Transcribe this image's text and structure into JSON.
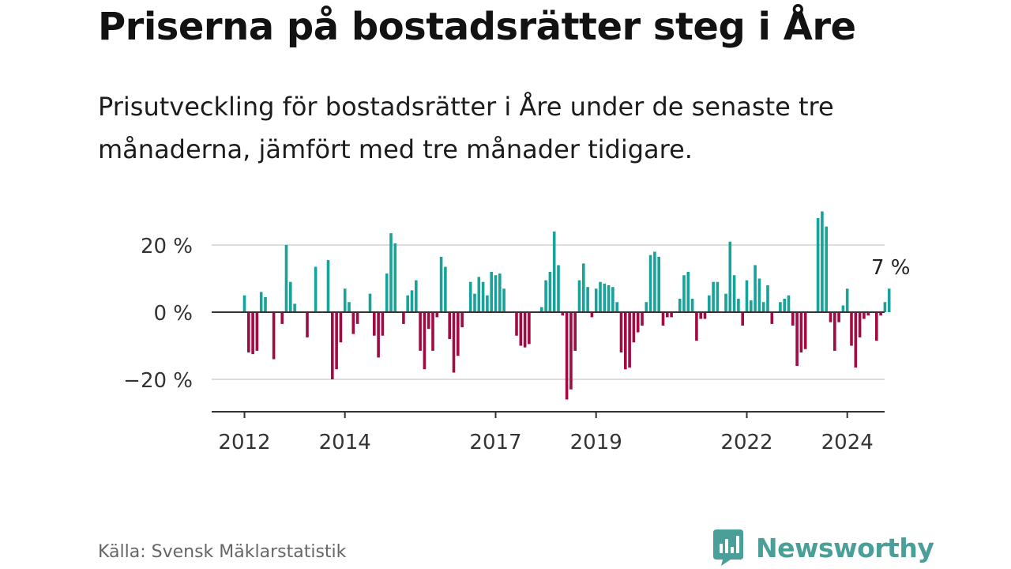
{
  "title": "Priserna på bostadsrätter steg i Åre",
  "subtitle": "Prisutveckling för bostadsrätter i Åre under de senaste tre månaderna, jämfört med tre månader tidigare.",
  "source": "Källa: Svensk Mäklarstatistik",
  "brand": "Newsworthy",
  "colors": {
    "positive": "#17a39a",
    "negative": "#a10a42",
    "brand": "#4a9f98"
  },
  "chart_data": {
    "type": "bar",
    "title": "Priserna på bostadsrätter steg i Åre",
    "xlabel": "",
    "ylabel": "",
    "ylim": [
      -30,
      30
    ],
    "y_ticks": [
      20,
      0,
      -20
    ],
    "y_tick_labels": [
      "20 %",
      "0 %",
      "−20 %"
    ],
    "x_ticks": [
      2012,
      2014,
      2017,
      2019,
      2022,
      2024
    ],
    "x_tick_labels": [
      "2012",
      "2014",
      "2017",
      "2019",
      "2022",
      "2024"
    ],
    "annotation": "7 %",
    "start": "2012-01",
    "values": [
      5,
      -12,
      -12.5,
      -11.5,
      6,
      4.5,
      0,
      -14,
      0,
      -3.5,
      20,
      9,
      2.5,
      0,
      0,
      -7.5,
      0,
      13.5,
      0,
      0,
      15.5,
      -20,
      -17,
      -9,
      7,
      3,
      -6.5,
      -3.5,
      0,
      0,
      5.5,
      -7,
      -13.5,
      -7,
      11.5,
      23.5,
      20.5,
      0,
      -3.5,
      5,
      6.5,
      9.5,
      -11.5,
      -17,
      -5,
      -11.5,
      -1.5,
      16.5,
      13.5,
      -8,
      -18,
      -13,
      -4.5,
      0,
      9,
      5.5,
      10.5,
      9,
      5,
      12,
      11,
      11.5,
      7,
      0,
      0,
      -7,
      -10,
      -10.5,
      -9.5,
      0,
      0,
      1.5,
      9.5,
      12,
      24,
      14,
      -1,
      -26,
      -23,
      -11.5,
      9.5,
      14.5,
      7.5,
      -1.5,
      7,
      9,
      8.5,
      8,
      7.5,
      3,
      -12,
      -17,
      -16.5,
      -9,
      -6,
      -4,
      3,
      17,
      18,
      16.5,
      -4,
      -1.5,
      -1.5,
      0,
      4,
      11,
      12,
      4,
      -8.5,
      -2,
      -2,
      5,
      9,
      9,
      0,
      5.5,
      21,
      11,
      4,
      -4,
      9.5,
      3.5,
      14,
      10,
      3,
      8,
      -3.5,
      0,
      3,
      4,
      5,
      -4,
      -16,
      -12,
      -11,
      0,
      0,
      28,
      30,
      25.5,
      -3,
      -11.5,
      -3,
      2,
      7,
      -10,
      -16.5,
      -7.5,
      -2,
      -1,
      0,
      -8.5,
      -1,
      3,
      7
    ]
  }
}
